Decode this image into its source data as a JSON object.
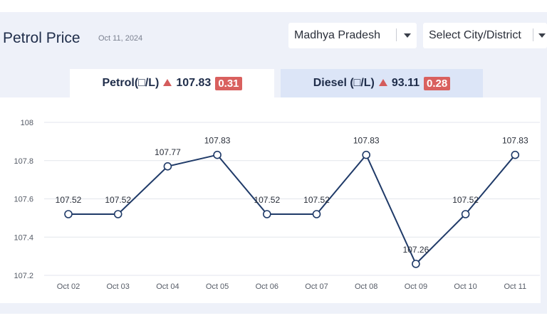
{
  "header": {
    "title": "Petrol Price",
    "date": "Oct 11, 2024"
  },
  "filters": {
    "state": "Madhya Pradesh",
    "city": "Select City/District"
  },
  "tabs": {
    "petrol": {
      "label": "Petrol(□/L)",
      "value": "107.83",
      "change": "0.31",
      "trend": "up"
    },
    "diesel": {
      "label": "Diesel (□/L)",
      "value": "93.11",
      "change": "0.28",
      "trend": "up"
    }
  },
  "colors": {
    "line": "#1f3a68",
    "badge": "#d9605e",
    "active_tab": "#ffffff",
    "inactive_tab": "#dce5f7"
  },
  "chart_data": {
    "type": "line",
    "categories": [
      "Oct 02",
      "Oct 03",
      "Oct 04",
      "Oct 05",
      "Oct 06",
      "Oct 07",
      "Oct 08",
      "Oct 09",
      "Oct 10",
      "Oct 11"
    ],
    "series": [
      {
        "values": [
          107.52,
          107.52,
          107.77,
          107.83,
          107.52,
          107.52,
          107.83,
          107.26,
          107.52,
          107.83
        ]
      }
    ],
    "data_labels": [
      "107.52",
      "107.52",
      "107.77",
      "107.83",
      "107.52",
      "107.52",
      "107.83",
      "107.26",
      "107.52",
      "107.83"
    ],
    "yticks": [
      "108",
      "107.8",
      "107.6",
      "107.4",
      "107.2"
    ],
    "ylim": [
      107.2,
      108
    ],
    "grid": true,
    "title": "",
    "xlabel": "",
    "ylabel": ""
  }
}
